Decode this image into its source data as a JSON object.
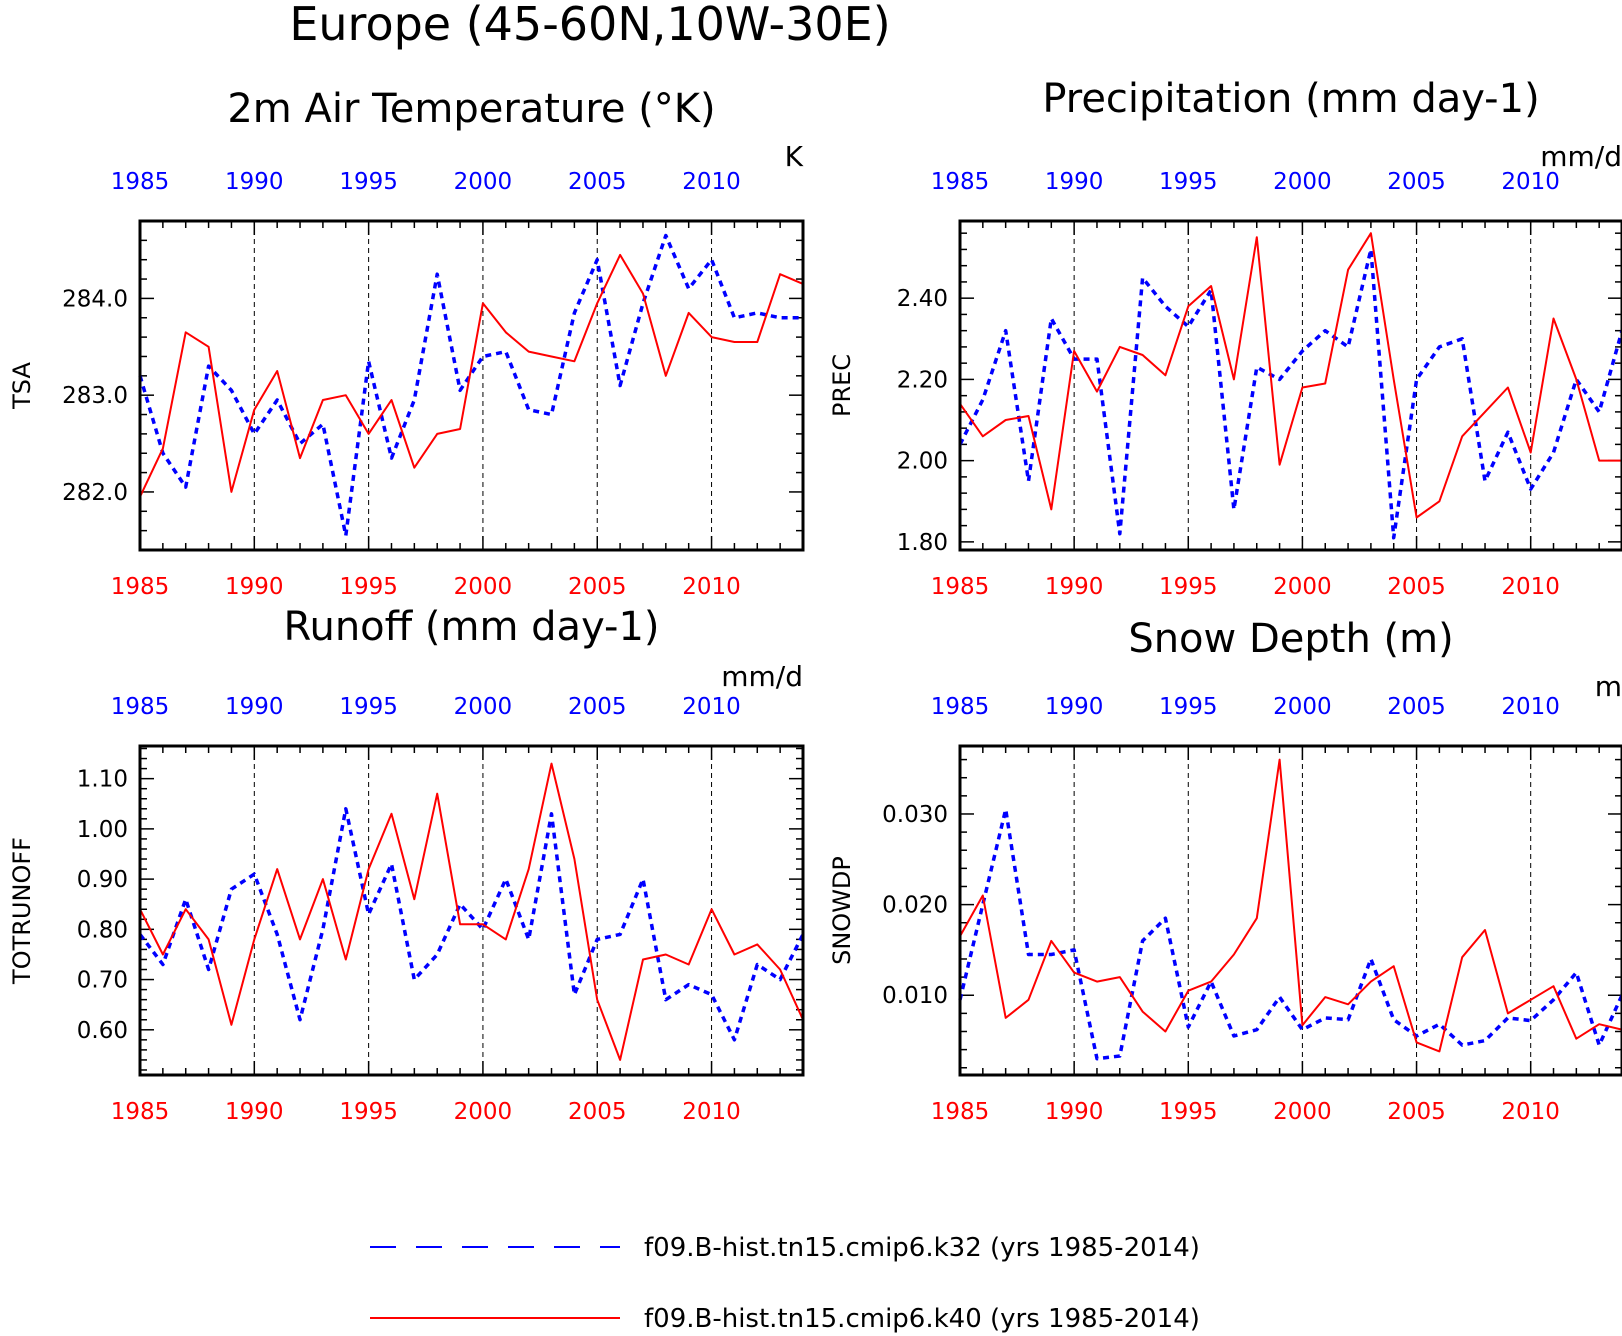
{
  "figure": {
    "title": "Europe (45-60N,10W-30E)"
  },
  "colors": {
    "k32": "#0000ff",
    "k40": "#ff0000",
    "grid": "#000000"
  },
  "legend": {
    "items": [
      {
        "label": "f09.B-hist.tn15.cmip6.k32 (yrs 1985-2014)",
        "color": "#0000ff",
        "style": "dashed"
      },
      {
        "label": "f09.B-hist.tn15.cmip6.k40 (yrs 1985-2014)",
        "color": "#ff0000",
        "style": "solid"
      }
    ]
  },
  "chart_data": [
    {
      "type": "line",
      "title": "2m Air Temperature (°K)",
      "ylabel": "TSA",
      "units": "K",
      "x_top_ticks": [
        "1985",
        "1990",
        "1995",
        "2000",
        "2005",
        "2010"
      ],
      "x_bottom_ticks": [
        "1985",
        "1990",
        "1995",
        "2000",
        "2005",
        "2010"
      ],
      "y_ticks": [
        "282.0",
        "283.0",
        "284.0"
      ],
      "xlim": [
        1985,
        2014
      ],
      "ylim": [
        281.4,
        284.8
      ],
      "x": [
        1985,
        1986,
        1987,
        1988,
        1989,
        1990,
        1991,
        1992,
        1993,
        1994,
        1995,
        1996,
        1997,
        1998,
        1999,
        2000,
        2001,
        2002,
        2003,
        2004,
        2005,
        2006,
        2007,
        2008,
        2009,
        2010,
        2011,
        2012,
        2013,
        2014
      ],
      "series": [
        {
          "name": "f09.B-hist.tn15.cmip6.k32",
          "values": [
            283.2,
            282.4,
            282.05,
            283.3,
            283.05,
            282.6,
            282.95,
            282.5,
            282.7,
            281.55,
            283.35,
            282.35,
            282.95,
            284.25,
            283.05,
            283.4,
            283.45,
            282.85,
            282.8,
            283.85,
            284.4,
            283.1,
            283.95,
            284.65,
            284.1,
            284.4,
            283.8,
            283.85,
            283.8,
            283.8
          ]
        },
        {
          "name": "f09.B-hist.tn15.cmip6.k40",
          "values": [
            281.95,
            282.45,
            283.65,
            283.5,
            282.0,
            282.85,
            283.25,
            282.35,
            282.95,
            283.0,
            282.6,
            282.95,
            282.25,
            282.6,
            282.65,
            283.95,
            283.65,
            283.45,
            283.4,
            283.35,
            283.95,
            284.45,
            284.05,
            283.2,
            283.85,
            283.6,
            283.55,
            283.55,
            284.25,
            284.15
          ]
        }
      ]
    },
    {
      "type": "line",
      "title": "Precipitation (mm day-1)",
      "ylabel": "PREC",
      "units": "mm/d",
      "x_top_ticks": [
        "1985",
        "1990",
        "1995",
        "2000",
        "2005",
        "2010"
      ],
      "x_bottom_ticks": [
        "1985",
        "1990",
        "1995",
        "2000",
        "2005",
        "2010"
      ],
      "y_ticks": [
        "1.80",
        "2.00",
        "2.20",
        "2.40"
      ],
      "xlim": [
        1985,
        2014
      ],
      "ylim": [
        1.78,
        2.59
      ],
      "x": [
        1985,
        1986,
        1987,
        1988,
        1989,
        1990,
        1991,
        1992,
        1993,
        1994,
        1995,
        1996,
        1997,
        1998,
        1999,
        2000,
        2001,
        2002,
        2003,
        2004,
        2005,
        2006,
        2007,
        2008,
        2009,
        2010,
        2011,
        2012,
        2013,
        2014
      ],
      "series": [
        {
          "name": "f09.B-hist.tn15.cmip6.k32",
          "values": [
            2.04,
            2.15,
            2.32,
            1.95,
            2.35,
            2.25,
            2.25,
            1.82,
            2.45,
            2.38,
            2.33,
            2.42,
            1.88,
            2.23,
            2.2,
            2.27,
            2.32,
            2.28,
            2.52,
            1.81,
            2.2,
            2.28,
            2.3,
            1.95,
            2.07,
            1.93,
            2.02,
            2.2,
            2.12,
            2.32
          ]
        },
        {
          "name": "f09.B-hist.tn15.cmip6.k40",
          "values": [
            2.14,
            2.06,
            2.1,
            2.11,
            1.88,
            2.27,
            2.17,
            2.28,
            2.26,
            2.21,
            2.38,
            2.43,
            2.2,
            2.55,
            1.99,
            2.18,
            2.19,
            2.47,
            2.56,
            2.2,
            1.86,
            1.9,
            2.06,
            2.12,
            2.18,
            2.02,
            2.35,
            2.2,
            2.0,
            2.0
          ]
        }
      ]
    },
    {
      "type": "line",
      "title": "Runoff (mm day-1)",
      "ylabel": "TOTRUNOFF",
      "units": "mm/d",
      "x_top_ticks": [
        "1985",
        "1990",
        "1995",
        "2000",
        "2005",
        "2010"
      ],
      "x_bottom_ticks": [
        "1985",
        "1990",
        "1995",
        "2000",
        "2005",
        "2010"
      ],
      "y_ticks": [
        "0.60",
        "0.70",
        "0.80",
        "0.90",
        "1.00",
        "1.10"
      ],
      "xlim": [
        1985,
        2014
      ],
      "ylim": [
        0.51,
        1.165
      ],
      "x": [
        1985,
        1986,
        1987,
        1988,
        1989,
        1990,
        1991,
        1992,
        1993,
        1994,
        1995,
        1996,
        1997,
        1998,
        1999,
        2000,
        2001,
        2002,
        2003,
        2004,
        2005,
        2006,
        2007,
        2008,
        2009,
        2010,
        2011,
        2012,
        2013,
        2014
      ],
      "series": [
        {
          "name": "f09.B-hist.tn15.cmip6.k32",
          "values": [
            0.79,
            0.73,
            0.86,
            0.72,
            0.88,
            0.91,
            0.79,
            0.62,
            0.8,
            1.04,
            0.83,
            0.93,
            0.7,
            0.75,
            0.85,
            0.8,
            0.9,
            0.78,
            1.03,
            0.67,
            0.78,
            0.79,
            0.9,
            0.66,
            0.69,
            0.67,
            0.58,
            0.73,
            0.7,
            0.79
          ]
        },
        {
          "name": "f09.B-hist.tn15.cmip6.k40",
          "values": [
            0.84,
            0.75,
            0.84,
            0.78,
            0.61,
            0.78,
            0.92,
            0.78,
            0.9,
            0.74,
            0.92,
            1.03,
            0.86,
            1.07,
            0.81,
            0.81,
            0.78,
            0.92,
            1.13,
            0.94,
            0.66,
            0.54,
            0.74,
            0.75,
            0.73,
            0.84,
            0.75,
            0.77,
            0.72,
            0.62
          ]
        }
      ]
    },
    {
      "type": "line",
      "title": "Snow Depth (m)",
      "ylabel": "SNOWDP",
      "units": "m",
      "x_top_ticks": [
        "1985",
        "1990",
        "1995",
        "2000",
        "2005",
        "2010"
      ],
      "x_bottom_ticks": [
        "1985",
        "1990",
        "1995",
        "2000",
        "2005",
        "2010"
      ],
      "y_ticks": [
        "0.010",
        "0.020",
        "0.030"
      ],
      "xlim": [
        1985,
        2014
      ],
      "ylim": [
        0.0012,
        0.0375
      ],
      "x": [
        1985,
        1986,
        1987,
        1988,
        1989,
        1990,
        1991,
        1992,
        1993,
        1994,
        1995,
        1996,
        1997,
        1998,
        1999,
        2000,
        2001,
        2002,
        2003,
        2004,
        2005,
        2006,
        2007,
        2008,
        2009,
        2010,
        2011,
        2012,
        2013,
        2014
      ],
      "series": [
        {
          "name": "f09.B-hist.tn15.cmip6.k32",
          "values": [
            0.0095,
            0.02,
            0.0305,
            0.0145,
            0.0145,
            0.015,
            0.003,
            0.0033,
            0.016,
            0.0185,
            0.0065,
            0.0115,
            0.0055,
            0.0062,
            0.0098,
            0.0062,
            0.0075,
            0.0073,
            0.014,
            0.0073,
            0.0055,
            0.0068,
            0.0045,
            0.005,
            0.0075,
            0.0072,
            0.0095,
            0.0125,
            0.0045,
            0.01
          ]
        },
        {
          "name": "f09.B-hist.tn15.cmip6.k40",
          "values": [
            0.0165,
            0.021,
            0.0075,
            0.0095,
            0.016,
            0.0125,
            0.0115,
            0.012,
            0.0082,
            0.006,
            0.0105,
            0.0115,
            0.0145,
            0.0185,
            0.036,
            0.0067,
            0.0098,
            0.009,
            0.0115,
            0.0132,
            0.0048,
            0.0038,
            0.0142,
            0.0172,
            0.008,
            0.0095,
            0.011,
            0.0052,
            0.0068,
            0.0062
          ]
        }
      ]
    }
  ]
}
